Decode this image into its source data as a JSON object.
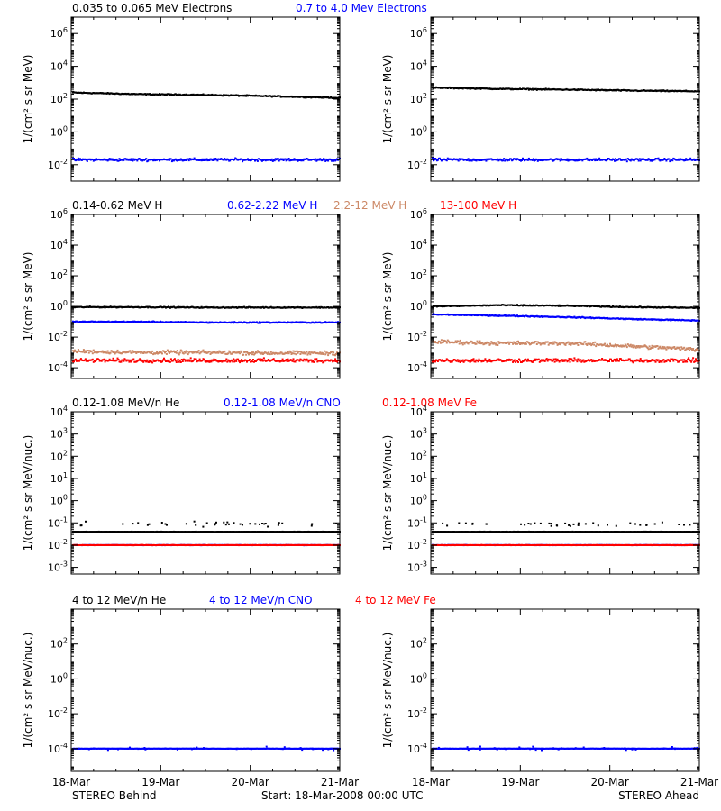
{
  "footer": {
    "left": "STEREO Behind",
    "center": "Start: 18-Mar-2008 00:00 UTC",
    "right": "STEREO Ahead"
  },
  "x_ticks": [
    "18-Mar",
    "19-Mar",
    "20-Mar",
    "21-Mar"
  ],
  "chart_data": [
    {
      "type": "scatter",
      "row": 1,
      "ylabel": "1/(cm² s sr MeV)",
      "yscale": "log",
      "ylim": [
        0.001,
        10000000
      ],
      "y_tick_exps": [
        -2,
        0,
        2,
        4,
        6
      ],
      "titles": [
        {
          "text": "0.035 to 0.065 MeV Electrons",
          "color": "#000000"
        },
        {
          "text": "0.7 to 4.0 Mev Electrons",
          "color": "#0000ff"
        }
      ],
      "series": [
        {
          "color": "#000000",
          "behind": [
            250,
            200,
            180,
            150,
            120
          ],
          "ahead": [
            500,
            420,
            380,
            330,
            300
          ]
        },
        {
          "color": "#0000ff",
          "behind": [
            0.02,
            0.02,
            0.02,
            0.02,
            0.02
          ],
          "ahead": [
            0.02,
            0.02,
            0.02,
            0.02,
            0.02
          ]
        }
      ]
    },
    {
      "type": "scatter",
      "row": 2,
      "ylabel": "1/(cm² s sr MeV)",
      "yscale": "log",
      "ylim": [
        2e-05,
        1000000
      ],
      "y_tick_exps": [
        -4,
        -2,
        0,
        2,
        4,
        6
      ],
      "titles": [
        {
          "text": "0.14-0.62 MeV H",
          "color": "#000000"
        },
        {
          "text": "0.62-2.22 MeV H",
          "color": "#0000ff"
        },
        {
          "text": "2.2-12 MeV H",
          "color": "#cc8866"
        },
        {
          "text": "13-100 MeV H",
          "color": "#ff0000"
        }
      ],
      "series": [
        {
          "color": "#000000",
          "behind": [
            0.9,
            0.9,
            0.85,
            0.85,
            0.85
          ],
          "ahead": [
            1.0,
            1.2,
            1.1,
            0.9,
            0.8
          ]
        },
        {
          "color": "#0000ff",
          "behind": [
            0.1,
            0.1,
            0.09,
            0.09,
            0.09
          ],
          "ahead": [
            0.3,
            0.25,
            0.2,
            0.15,
            0.12
          ]
        },
        {
          "color": "#cc8866",
          "behind": [
            0.0012,
            0.001,
            0.001,
            0.0009,
            0.0009
          ],
          "ahead": [
            0.005,
            0.004,
            0.004,
            0.0025,
            0.0015
          ]
        },
        {
          "color": "#ff0000",
          "behind": [
            0.0003,
            0.0003,
            0.0003,
            0.0003,
            0.0003
          ],
          "ahead": [
            0.0003,
            0.0003,
            0.0003,
            0.0003,
            0.0003
          ]
        }
      ]
    },
    {
      "type": "scatter",
      "row": 3,
      "ylabel": "1/(cm² s sr MeV/nuc.)",
      "yscale": "log",
      "ylim": [
        0.0005,
        10000
      ],
      "y_tick_exps": [
        -3,
        -2,
        -1,
        0,
        1,
        2,
        3,
        4
      ],
      "titles": [
        {
          "text": "0.12-1.08 MeV/n He",
          "color": "#000000"
        },
        {
          "text": "0.12-1.08 MeV/n CNO",
          "color": "#0000ff"
        },
        {
          "text": "0.12-1.08 MeV Fe",
          "color": "#ff0000"
        }
      ],
      "series": [
        {
          "color": "#000000",
          "behind": [
            0.04,
            0.04,
            0.04,
            0.04,
            0.04
          ],
          "ahead": [
            0.04,
            0.04,
            0.04,
            0.04,
            0.04
          ]
        },
        {
          "color": "#0000ff",
          "behind": [
            0.01,
            0.01,
            0.01,
            0.01,
            0.01
          ],
          "ahead": [
            0.01,
            0.01,
            0.01,
            0.01,
            0.01
          ]
        },
        {
          "color": "#ff0000",
          "behind": [
            0.01,
            0.01,
            0.01,
            0.01,
            0.01
          ],
          "ahead": [
            0.01,
            0.01,
            0.01,
            0.01,
            0.01
          ]
        }
      ]
    },
    {
      "type": "scatter",
      "row": 4,
      "ylabel": "1/(cm² s sr MeV/nuc.)",
      "yscale": "log",
      "ylim": [
        5e-06,
        10000
      ],
      "y_tick_exps": [
        -4,
        -2,
        0,
        2
      ],
      "titles": [
        {
          "text": "4 to 12 MeV/n He",
          "color": "#000000"
        },
        {
          "text": "4 to 12 MeV/n CNO",
          "color": "#0000ff"
        },
        {
          "text": "4 to 12 MeV Fe",
          "color": "#ff0000"
        }
      ],
      "series": [
        {
          "color": "#0000ff",
          "behind": [
            0.0001,
            0.0001,
            0.0001,
            0.0001,
            0.0001
          ],
          "ahead": [
            0.0001,
            0.0001,
            0.0001,
            0.0001,
            0.0001
          ]
        }
      ]
    }
  ]
}
